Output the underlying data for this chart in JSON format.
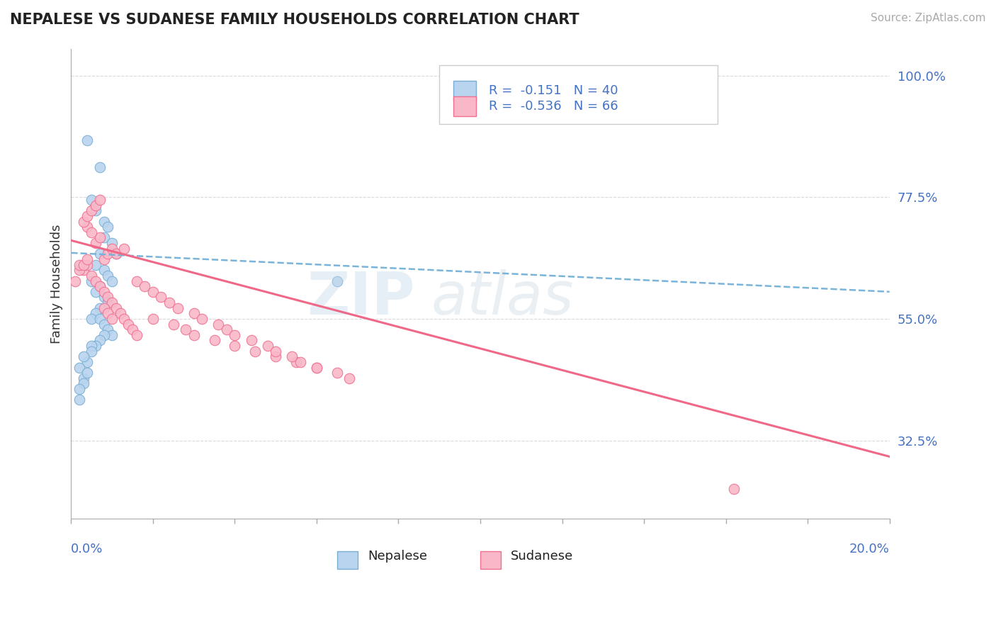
{
  "title": "NEPALESE VS SUDANESE FAMILY HOUSEHOLDS CORRELATION CHART",
  "source": "Source: ZipAtlas.com",
  "ylabel": "Family Households",
  "yticks": [
    0.325,
    0.55,
    0.775,
    1.0
  ],
  "ytick_labels": [
    "32.5%",
    "55.0%",
    "77.5%",
    "100.0%"
  ],
  "xlim": [
    0.0,
    0.2
  ],
  "ylim": [
    0.18,
    1.05
  ],
  "nepalese_R": -0.151,
  "nepalese_N": 40,
  "sudanese_R": -0.536,
  "sudanese_N": 66,
  "nepalese_fill_color": "#b8d4ee",
  "sudanese_fill_color": "#f9b8c8",
  "nepalese_edge_color": "#7aaed4",
  "sudanese_edge_color": "#f07090",
  "nepalese_line_color": "#7ab4d8",
  "sudanese_line_color": "#f06888",
  "nepalese_scatter_x": [
    0.004,
    0.007,
    0.005,
    0.006,
    0.008,
    0.009,
    0.008,
    0.01,
    0.007,
    0.011,
    0.006,
    0.008,
    0.009,
    0.01,
    0.005,
    0.007,
    0.006,
    0.008,
    0.009,
    0.007,
    0.006,
    0.005,
    0.007,
    0.008,
    0.009,
    0.01,
    0.008,
    0.007,
    0.006,
    0.005,
    0.065,
    0.002,
    0.003,
    0.004,
    0.005,
    0.003,
    0.002,
    0.004,
    0.003,
    0.002
  ],
  "nepalese_scatter_y": [
    0.88,
    0.83,
    0.77,
    0.75,
    0.73,
    0.72,
    0.7,
    0.69,
    0.67,
    0.67,
    0.65,
    0.64,
    0.63,
    0.62,
    0.62,
    0.61,
    0.6,
    0.59,
    0.58,
    0.57,
    0.56,
    0.55,
    0.55,
    0.54,
    0.53,
    0.52,
    0.52,
    0.51,
    0.5,
    0.5,
    0.62,
    0.4,
    0.44,
    0.47,
    0.49,
    0.48,
    0.46,
    0.45,
    0.43,
    0.42
  ],
  "sudanese_scatter_x": [
    0.001,
    0.003,
    0.004,
    0.005,
    0.006,
    0.007,
    0.008,
    0.009,
    0.01,
    0.011,
    0.012,
    0.013,
    0.014,
    0.015,
    0.016,
    0.008,
    0.009,
    0.01,
    0.006,
    0.007,
    0.004,
    0.005,
    0.003,
    0.004,
    0.005,
    0.006,
    0.007,
    0.008,
    0.009,
    0.01,
    0.025,
    0.03,
    0.04,
    0.05,
    0.028,
    0.035,
    0.02,
    0.045,
    0.055,
    0.06,
    0.016,
    0.018,
    0.02,
    0.022,
    0.024,
    0.026,
    0.03,
    0.032,
    0.036,
    0.038,
    0.04,
    0.044,
    0.048,
    0.05,
    0.054,
    0.056,
    0.06,
    0.065,
    0.002,
    0.002,
    0.003,
    0.004,
    0.011,
    0.013,
    0.068,
    0.162
  ],
  "sudanese_scatter_y": [
    0.62,
    0.64,
    0.65,
    0.63,
    0.62,
    0.61,
    0.6,
    0.59,
    0.58,
    0.57,
    0.56,
    0.55,
    0.54,
    0.53,
    0.52,
    0.66,
    0.67,
    0.68,
    0.69,
    0.7,
    0.72,
    0.71,
    0.73,
    0.74,
    0.75,
    0.76,
    0.77,
    0.57,
    0.56,
    0.55,
    0.54,
    0.52,
    0.5,
    0.48,
    0.53,
    0.51,
    0.55,
    0.49,
    0.47,
    0.46,
    0.62,
    0.61,
    0.6,
    0.59,
    0.58,
    0.57,
    0.56,
    0.55,
    0.54,
    0.53,
    0.52,
    0.51,
    0.5,
    0.49,
    0.48,
    0.47,
    0.46,
    0.45,
    0.64,
    0.65,
    0.65,
    0.66,
    0.67,
    0.68,
    0.44,
    0.235
  ],
  "nepalese_line_x": [
    0.0,
    0.2
  ],
  "nepalese_line_y": [
    0.672,
    0.6
  ],
  "sudanese_line_x": [
    0.0,
    0.2
  ],
  "sudanese_line_y": [
    0.695,
    0.295
  ],
  "background_color": "#ffffff",
  "grid_color": "#d0d0d0"
}
